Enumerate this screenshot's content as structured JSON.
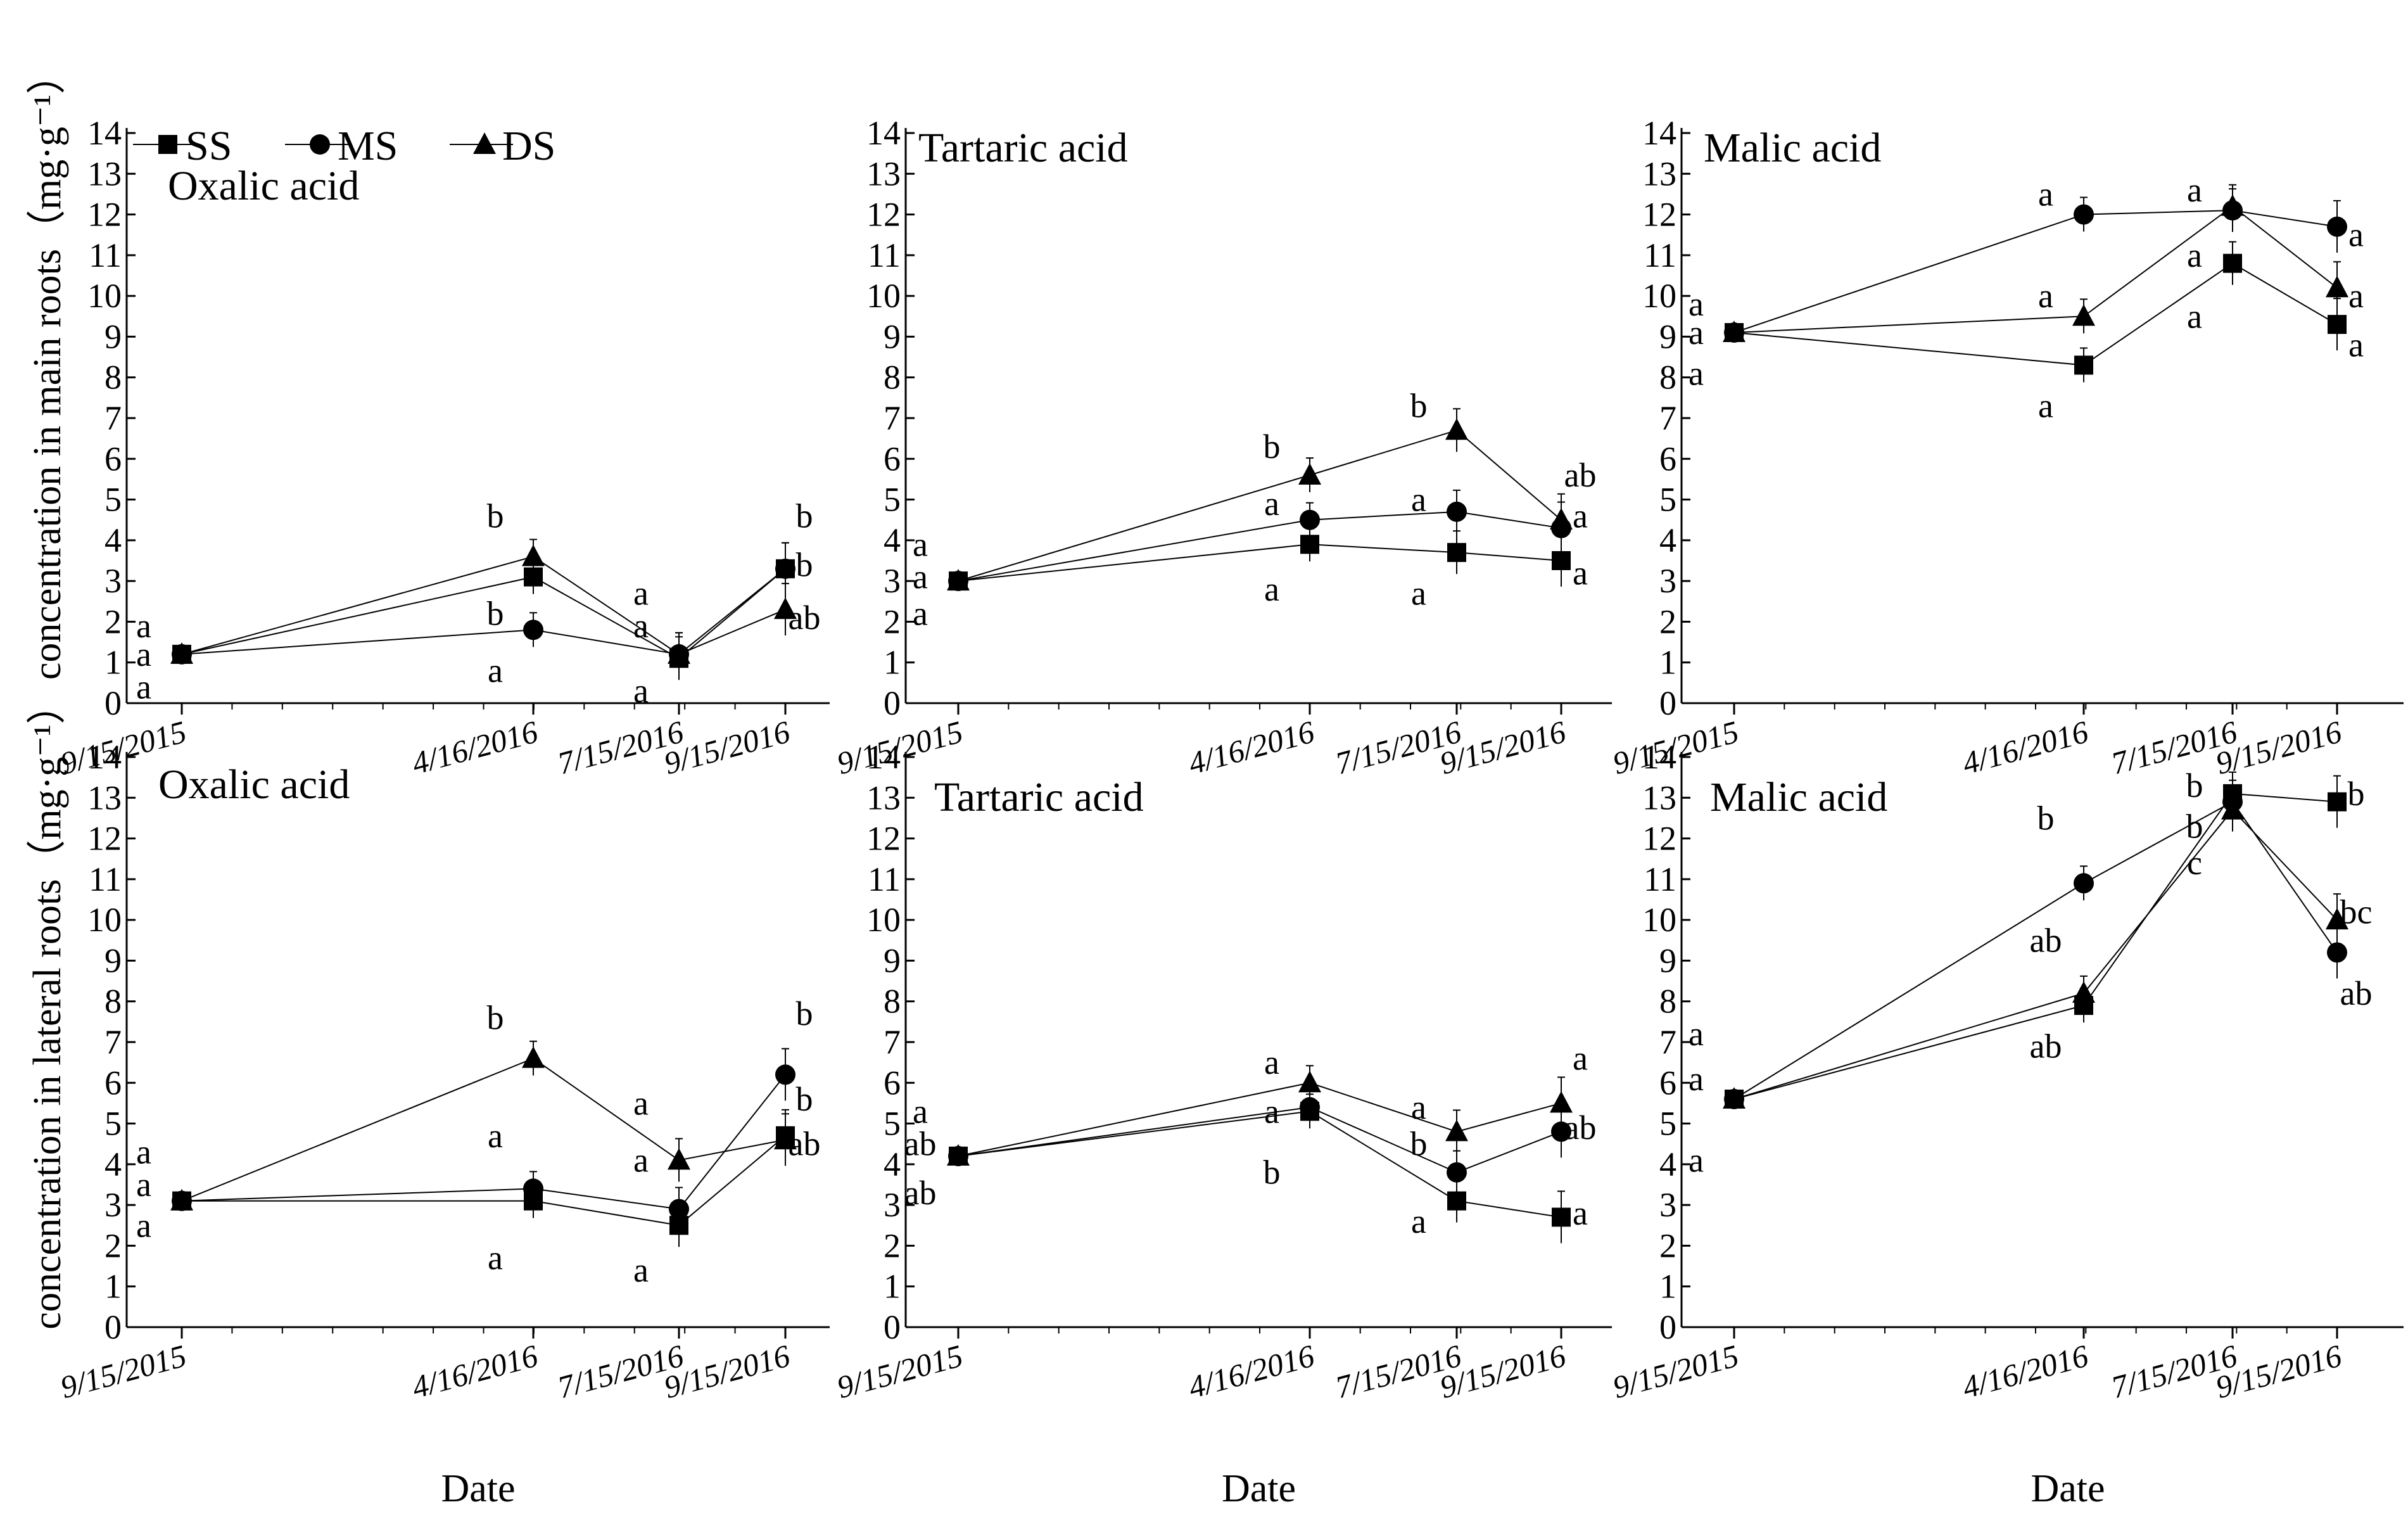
{
  "figure": {
    "ylabel_top": "concentration in main roots（mg·g⁻¹）",
    "ylabel_bottom": "concentration in lateral roots（mg·g⁻¹）",
    "xlabel": "Date",
    "legend": [
      "SS",
      "MS",
      "DS"
    ],
    "colors": {
      "line": "#000000",
      "background": "#ffffff"
    }
  },
  "chart_data": [
    {
      "type": "line",
      "panel": "main-oxalic",
      "title": "Oxalic acid",
      "xlabel": "Date",
      "ylabel": "concentration in main roots（mg·g⁻¹）",
      "x": [
        "9/15/2015",
        "4/16/2016",
        "7/15/2016",
        "9/15/2016"
      ],
      "ylim": [
        0,
        14
      ],
      "yticks": [
        0,
        1,
        2,
        3,
        4,
        5,
        6,
        7,
        8,
        9,
        10,
        11,
        12,
        13,
        14
      ],
      "series": [
        {
          "name": "SS",
          "marker": "square",
          "values": [
            1.2,
            3.1,
            1.1,
            3.3
          ]
        },
        {
          "name": "MS",
          "marker": "circle",
          "values": [
            1.2,
            1.8,
            1.2,
            3.3
          ]
        },
        {
          "name": "DS",
          "marker": "triangle",
          "values": [
            1.2,
            3.6,
            1.2,
            2.3
          ]
        }
      ],
      "annotations": [
        {
          "text": "a",
          "x": 0,
          "y": 1.9
        },
        {
          "text": "a",
          "x": 0,
          "y": 1.2
        },
        {
          "text": "a",
          "x": 0,
          "y": 0.4
        },
        {
          "text": "b",
          "x": 1,
          "y": 4.6
        },
        {
          "text": "b",
          "x": 1,
          "y": 2.2
        },
        {
          "text": "a",
          "x": 1,
          "y": 0.8
        },
        {
          "text": "a",
          "x": 2,
          "y": 2.7
        },
        {
          "text": "a",
          "x": 2,
          "y": 1.9
        },
        {
          "text": "a",
          "x": 2,
          "y": 0.3
        },
        {
          "text": "b",
          "x": 3,
          "y": 4.6
        },
        {
          "text": "b",
          "x": 3,
          "y": 3.4
        },
        {
          "text": "ab",
          "x": 3,
          "y": 2.1
        }
      ]
    },
    {
      "type": "line",
      "panel": "main-tartaric",
      "title": "Tartaric acid",
      "xlabel": "Date",
      "ylabel": "",
      "x": [
        "9/15/2015",
        "4/16/2016",
        "7/15/2016",
        "9/15/2016"
      ],
      "ylim": [
        0,
        14
      ],
      "yticks": [
        0,
        1,
        2,
        3,
        4,
        5,
        6,
        7,
        8,
        9,
        10,
        11,
        12,
        13,
        14
      ],
      "series": [
        {
          "name": "SS",
          "marker": "square",
          "values": [
            3.0,
            3.9,
            3.7,
            3.5
          ]
        },
        {
          "name": "MS",
          "marker": "circle",
          "values": [
            3.0,
            4.5,
            4.7,
            4.3
          ]
        },
        {
          "name": "DS",
          "marker": "triangle",
          "values": [
            3.0,
            5.6,
            6.7,
            4.5
          ]
        }
      ],
      "annotations": [
        {
          "text": "a",
          "x": 0,
          "y": 3.9
        },
        {
          "text": "a",
          "x": 0,
          "y": 3.1
        },
        {
          "text": "a",
          "x": 0,
          "y": 2.2
        },
        {
          "text": "b",
          "x": 1,
          "y": 6.3
        },
        {
          "text": "a",
          "x": 1,
          "y": 4.9
        },
        {
          "text": "a",
          "x": 1,
          "y": 2.8
        },
        {
          "text": "b",
          "x": 2,
          "y": 7.3
        },
        {
          "text": "a",
          "x": 2,
          "y": 5.0
        },
        {
          "text": "a",
          "x": 2,
          "y": 2.7
        },
        {
          "text": "ab",
          "x": 3,
          "y": 5.6
        },
        {
          "text": "a",
          "x": 3,
          "y": 4.6
        },
        {
          "text": "a",
          "x": 3,
          "y": 3.2
        }
      ]
    },
    {
      "type": "line",
      "panel": "main-malic",
      "title": "Malic acid",
      "xlabel": "Date",
      "ylabel": "",
      "x": [
        "9/15/2015",
        "4/16/2016",
        "7/15/2016",
        "9/15/2016"
      ],
      "ylim": [
        0,
        14
      ],
      "yticks": [
        0,
        1,
        2,
        3,
        4,
        5,
        6,
        7,
        8,
        9,
        10,
        11,
        12,
        13,
        14
      ],
      "series": [
        {
          "name": "SS",
          "marker": "square",
          "values": [
            9.1,
            8.3,
            10.8,
            9.3
          ]
        },
        {
          "name": "MS",
          "marker": "circle",
          "values": [
            9.1,
            12.0,
            12.1,
            11.7
          ]
        },
        {
          "name": "DS",
          "marker": "triangle",
          "values": [
            9.1,
            9.5,
            12.2,
            10.2
          ]
        }
      ],
      "annotations": [
        {
          "text": "a",
          "x": 0,
          "y": 9.8
        },
        {
          "text": "a",
          "x": 0,
          "y": 9.1
        },
        {
          "text": "a",
          "x": 0,
          "y": 8.1
        },
        {
          "text": "a",
          "x": 1,
          "y": 12.5
        },
        {
          "text": "a",
          "x": 1,
          "y": 10.0
        },
        {
          "text": "a",
          "x": 1,
          "y": 7.3
        },
        {
          "text": "a",
          "x": 2,
          "y": 12.6
        },
        {
          "text": "a",
          "x": 2,
          "y": 11.0
        },
        {
          "text": "a",
          "x": 2,
          "y": 9.5
        },
        {
          "text": "a",
          "x": 3,
          "y": 11.5
        },
        {
          "text": "a",
          "x": 3,
          "y": 10.0
        },
        {
          "text": "a",
          "x": 3,
          "y": 8.8
        }
      ]
    },
    {
      "type": "line",
      "panel": "lateral-oxalic",
      "title": "Oxalic acid",
      "xlabel": "Date",
      "ylabel": "concentration in lateral roots（mg·g⁻¹）",
      "x": [
        "9/15/2015",
        "4/16/2016",
        "7/15/2016",
        "9/15/2016"
      ],
      "ylim": [
        0,
        14
      ],
      "yticks": [
        0,
        1,
        2,
        3,
        4,
        5,
        6,
        7,
        8,
        9,
        10,
        11,
        12,
        13,
        14
      ],
      "series": [
        {
          "name": "SS",
          "marker": "square",
          "values": [
            3.1,
            3.1,
            2.5,
            4.7
          ]
        },
        {
          "name": "MS",
          "marker": "circle",
          "values": [
            3.1,
            3.4,
            2.9,
            6.2
          ]
        },
        {
          "name": "DS",
          "marker": "triangle",
          "values": [
            3.1,
            6.6,
            4.1,
            4.6
          ]
        }
      ],
      "annotations": [
        {
          "text": "a",
          "x": 0,
          "y": 4.3
        },
        {
          "text": "a",
          "x": 0,
          "y": 3.5
        },
        {
          "text": "a",
          "x": 0,
          "y": 2.5
        },
        {
          "text": "b",
          "x": 1,
          "y": 7.6
        },
        {
          "text": "a",
          "x": 1,
          "y": 4.7
        },
        {
          "text": "a",
          "x": 1,
          "y": 1.7
        },
        {
          "text": "a",
          "x": 2,
          "y": 5.5
        },
        {
          "text": "a",
          "x": 2,
          "y": 4.1
        },
        {
          "text": "a",
          "x": 2,
          "y": 1.4
        },
        {
          "text": "b",
          "x": 3,
          "y": 7.7
        },
        {
          "text": "b",
          "x": 3,
          "y": 5.6
        },
        {
          "text": "ab",
          "x": 3,
          "y": 4.5
        }
      ]
    },
    {
      "type": "line",
      "panel": "lateral-tartaric",
      "title": "Tartaric acid",
      "xlabel": "Date",
      "ylabel": "",
      "x": [
        "9/15/2015",
        "4/16/2016",
        "7/15/2016",
        "9/15/2016"
      ],
      "ylim": [
        0,
        14
      ],
      "yticks": [
        0,
        1,
        2,
        3,
        4,
        5,
        6,
        7,
        8,
        9,
        10,
        11,
        12,
        13,
        14
      ],
      "series": [
        {
          "name": "SS",
          "marker": "square",
          "values": [
            4.2,
            5.3,
            3.1,
            2.7
          ]
        },
        {
          "name": "MS",
          "marker": "circle",
          "values": [
            4.2,
            5.4,
            3.8,
            4.8
          ]
        },
        {
          "name": "DS",
          "marker": "triangle",
          "values": [
            4.2,
            6.0,
            4.8,
            5.5
          ]
        }
      ],
      "annotations": [
        {
          "text": "a",
          "x": 0,
          "y": 5.3
        },
        {
          "text": "ab",
          "x": 0,
          "y": 4.5
        },
        {
          "text": "ab",
          "x": 0,
          "y": 3.3
        },
        {
          "text": "a",
          "x": 1,
          "y": 6.5
        },
        {
          "text": "a",
          "x": 1,
          "y": 5.3
        },
        {
          "text": "b",
          "x": 1,
          "y": 3.8
        },
        {
          "text": "a",
          "x": 2,
          "y": 5.4
        },
        {
          "text": "b",
          "x": 2,
          "y": 4.5
        },
        {
          "text": "a",
          "x": 2,
          "y": 2.6
        },
        {
          "text": "a",
          "x": 3,
          "y": 6.6
        },
        {
          "text": "ab",
          "x": 3,
          "y": 4.9
        },
        {
          "text": "a",
          "x": 3,
          "y": 2.8
        }
      ]
    },
    {
      "type": "line",
      "panel": "lateral-malic",
      "title": "Malic acid",
      "xlabel": "Date",
      "ylabel": "",
      "x": [
        "9/15/2015",
        "4/16/2016",
        "7/15/2016",
        "9/15/2016"
      ],
      "ylim": [
        0,
        14
      ],
      "yticks": [
        0,
        1,
        2,
        3,
        4,
        5,
        6,
        7,
        8,
        9,
        10,
        11,
        12,
        13,
        14
      ],
      "series": [
        {
          "name": "SS",
          "marker": "square",
          "values": [
            5.6,
            7.9,
            13.1,
            12.9
          ]
        },
        {
          "name": "MS",
          "marker": "circle",
          "values": [
            5.6,
            10.9,
            12.9,
            9.2
          ]
        },
        {
          "name": "DS",
          "marker": "triangle",
          "values": [
            5.6,
            8.2,
            12.7,
            10.0
          ]
        }
      ],
      "annotations": [
        {
          "text": "a",
          "x": 0,
          "y": 7.2
        },
        {
          "text": "a",
          "x": 0,
          "y": 6.1
        },
        {
          "text": "a",
          "x": 0,
          "y": 4.1
        },
        {
          "text": "b",
          "x": 1,
          "y": 12.5
        },
        {
          "text": "ab",
          "x": 1,
          "y": 9.5
        },
        {
          "text": "ab",
          "x": 1,
          "y": 6.9
        },
        {
          "text": "b",
          "x": 2,
          "y": 13.3
        },
        {
          "text": "b",
          "x": 2,
          "y": 12.3
        },
        {
          "text": "c",
          "x": 2,
          "y": 11.4
        },
        {
          "text": "b",
          "x": 3,
          "y": 13.1
        },
        {
          "text": "bc",
          "x": 3,
          "y": 10.2
        },
        {
          "text": "ab",
          "x": 3,
          "y": 8.2
        }
      ]
    }
  ]
}
